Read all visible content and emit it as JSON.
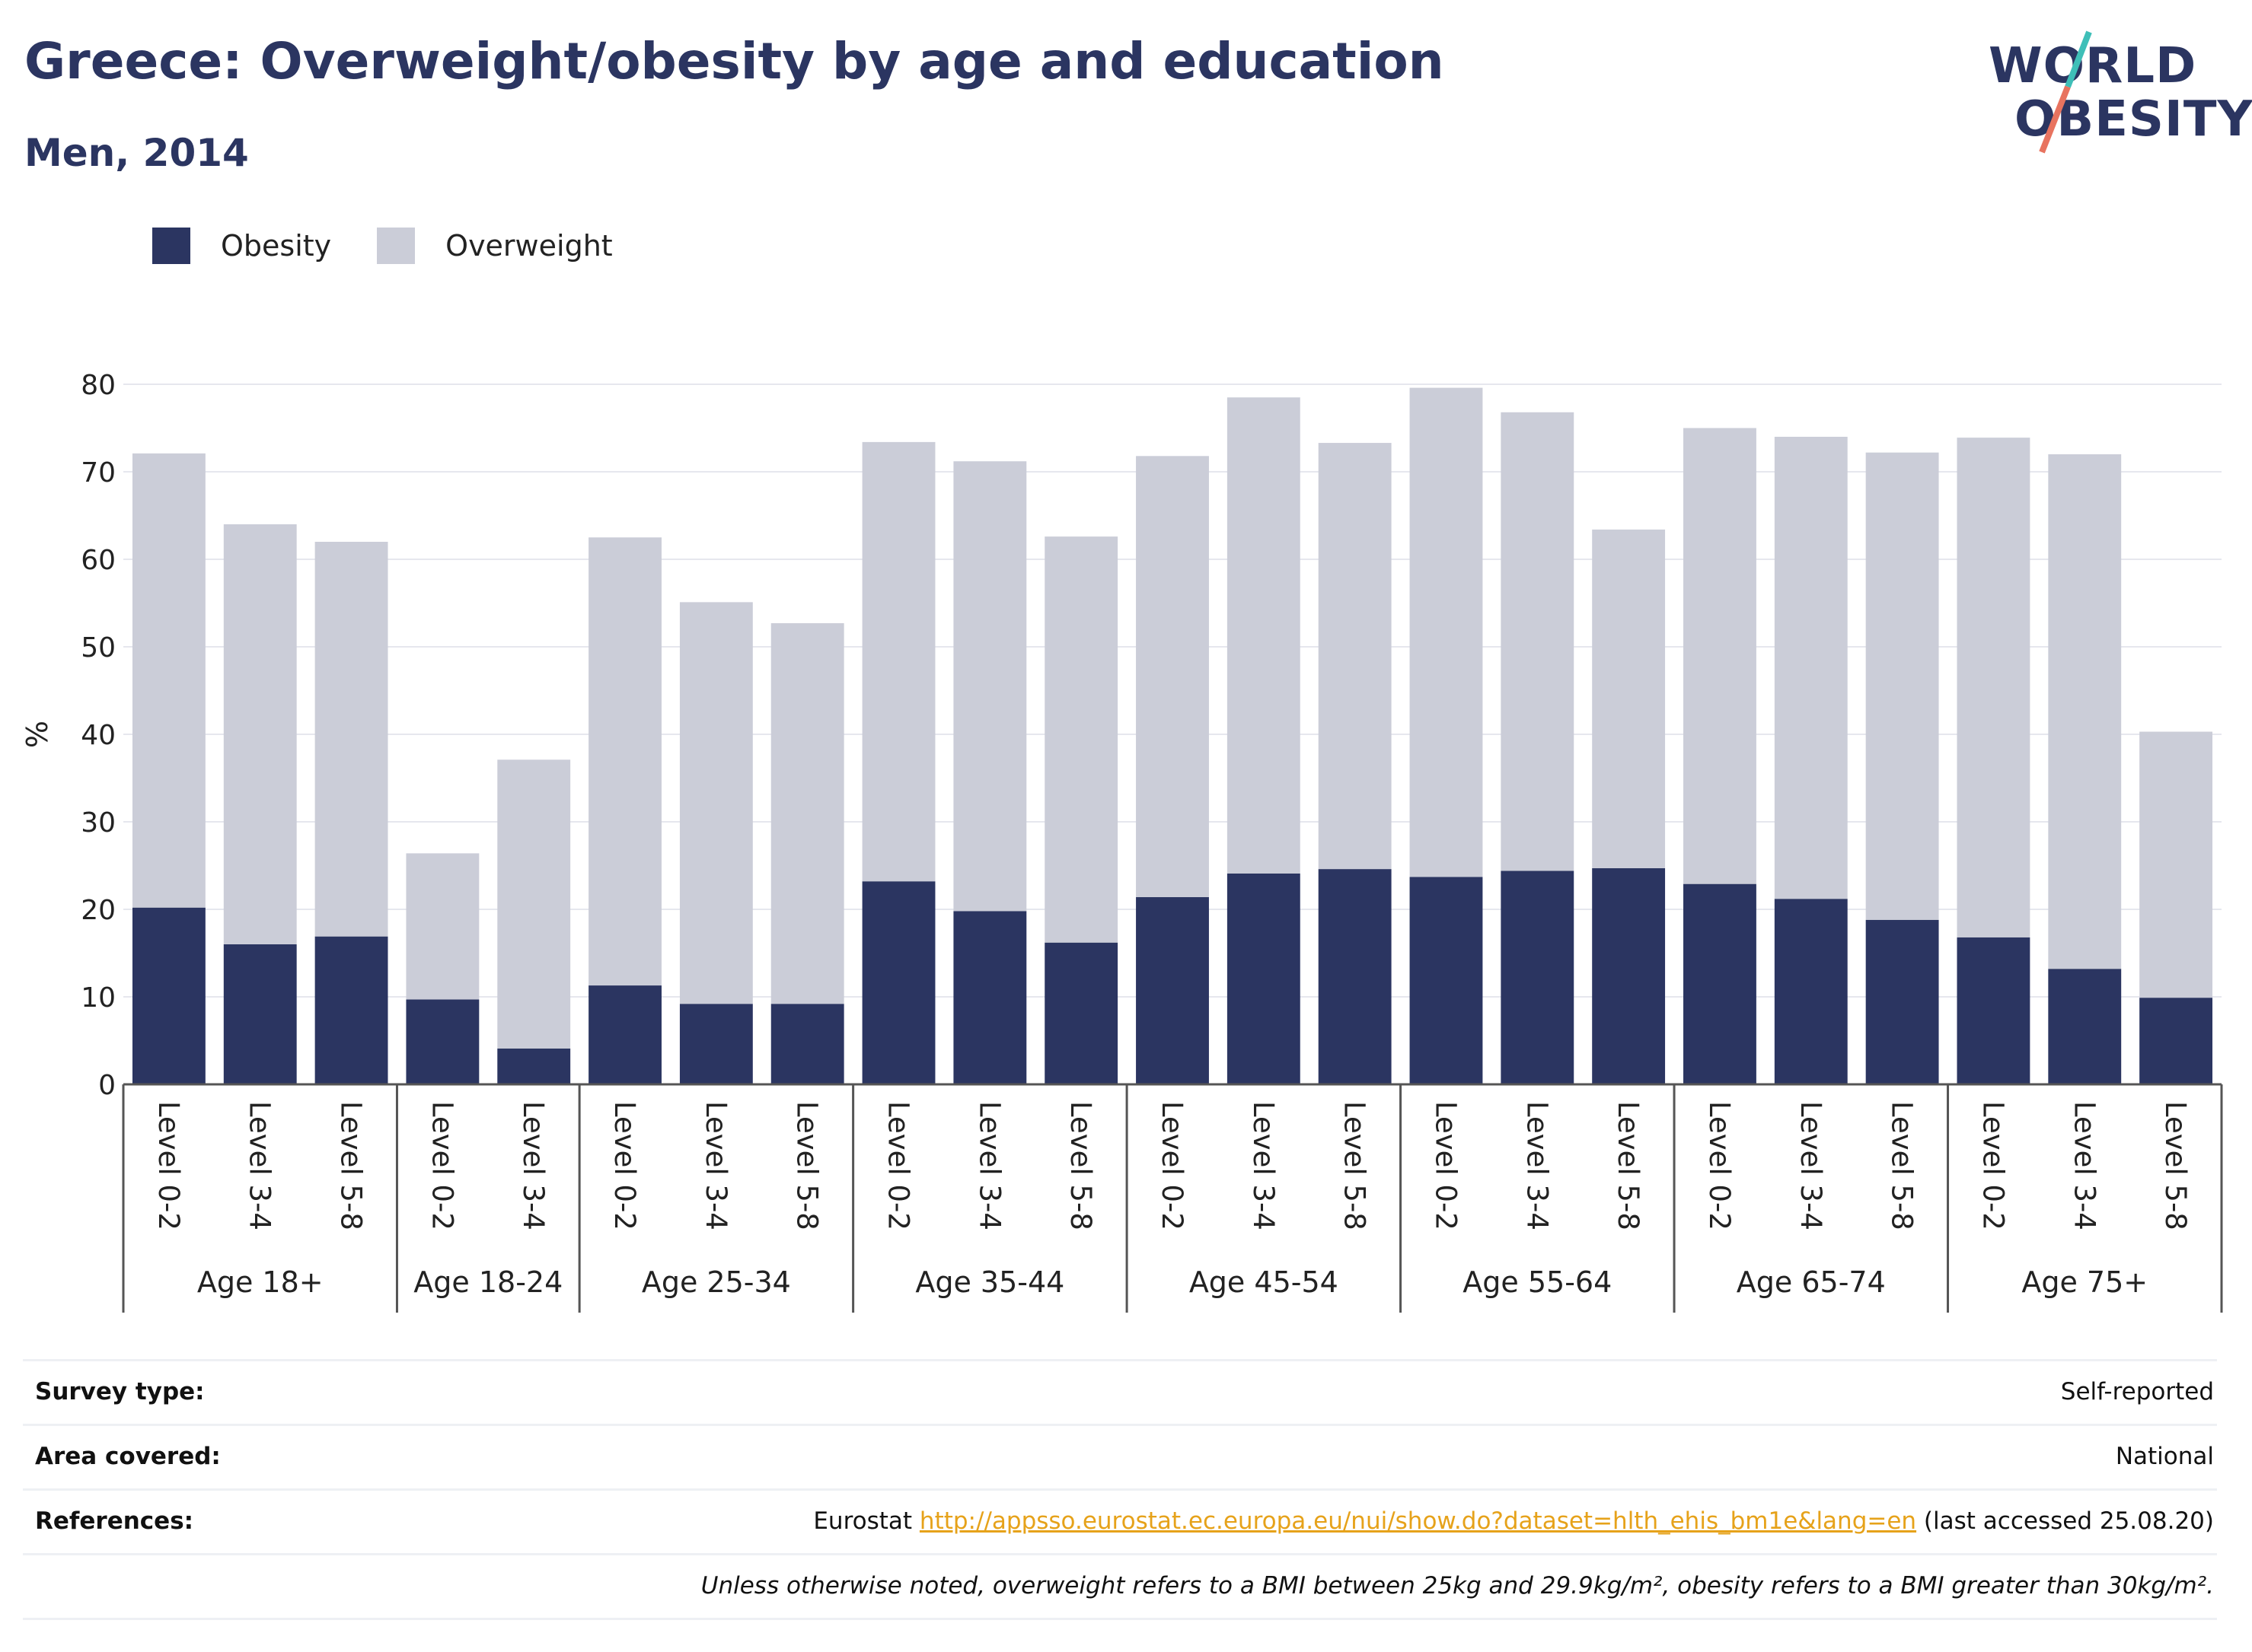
{
  "header": {
    "title": "Greece: Overweight/obesity by age and education",
    "subtitle": "Men, 2014"
  },
  "logo": {
    "line1": "WORLD",
    "line2": "OBESITY",
    "colors": {
      "text": "#2b3561",
      "slash_top": "#3fbfb8",
      "slash_bottom": "#e8735f"
    }
  },
  "legend": [
    {
      "label": "Obesity",
      "color": "#2b3561"
    },
    {
      "label": "Overweight",
      "color": "#cbcdd8"
    }
  ],
  "chart_data": {
    "type": "bar",
    "stacked": true,
    "ylabel": "%",
    "ylim": [
      0,
      80
    ],
    "yticks": [
      0,
      10,
      20,
      30,
      40,
      50,
      60,
      70,
      80
    ],
    "grid": true,
    "legend_position": "top-left",
    "groups": [
      {
        "name": "Age 18+",
        "categories": [
          "Level 0-2",
          "Level 3-4",
          "Level 5-8"
        ]
      },
      {
        "name": "Age 18-24",
        "categories": [
          "Level 0-2",
          "Level 3-4"
        ]
      },
      {
        "name": "Age 25-34",
        "categories": [
          "Level 0-2",
          "Level 3-4",
          "Level 5-8"
        ]
      },
      {
        "name": "Age 35-44",
        "categories": [
          "Level 0-2",
          "Level 3-4",
          "Level 5-8"
        ]
      },
      {
        "name": "Age 45-54",
        "categories": [
          "Level 0-2",
          "Level 3-4",
          "Level 5-8"
        ]
      },
      {
        "name": "Age 55-64",
        "categories": [
          "Level 0-2",
          "Level 3-4",
          "Level 5-8"
        ]
      },
      {
        "name": "Age 65-74",
        "categories": [
          "Level 0-2",
          "Level 3-4",
          "Level 5-8"
        ]
      },
      {
        "name": "Age 75+",
        "categories": [
          "Level 0-2",
          "Level 3-4",
          "Level 5-8"
        ]
      }
    ],
    "series": [
      {
        "name": "Obesity",
        "color": "#2b3561",
        "values": [
          20.2,
          16.0,
          16.9,
          9.7,
          4.1,
          11.3,
          9.2,
          9.2,
          23.2,
          19.8,
          16.2,
          21.4,
          24.1,
          24.6,
          23.7,
          24.4,
          24.7,
          22.9,
          21.2,
          18.8,
          16.8,
          13.2,
          9.9
        ]
      },
      {
        "name": "Overweight",
        "color": "#cbcdd8",
        "values": [
          51.9,
          48.0,
          45.1,
          16.7,
          33.0,
          51.2,
          45.9,
          43.5,
          50.2,
          51.4,
          46.4,
          50.4,
          54.4,
          48.7,
          55.9,
          52.4,
          38.7,
          52.1,
          52.8,
          53.4,
          57.1,
          58.8,
          30.4
        ]
      }
    ]
  },
  "meta": {
    "rows": [
      {
        "key": "Survey type:",
        "value": "Self-reported"
      },
      {
        "key": "Area covered:",
        "value": "National"
      },
      {
        "key": "References:",
        "prefix": "Eurostat ",
        "link": "http://appsso.eurostat.ec.europa.eu/nui/show.do?dataset=hlth_ehis_bm1e&lang=en",
        "suffix": " (last accessed 25.08.20)"
      }
    ],
    "note": "Unless otherwise noted, overweight refers to a BMI between 25kg and 29.9kg/m², obesity refers to a BMI greater than 30kg/m²."
  }
}
